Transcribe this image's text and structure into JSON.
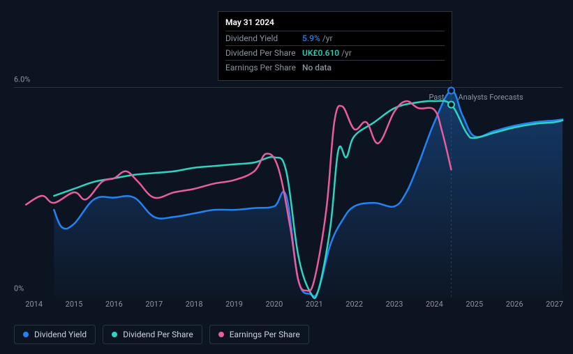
{
  "chart": {
    "type": "line",
    "background_color": "#0d1421",
    "grid_color": "#2a3340",
    "text_color": "#8b949e",
    "y_axis": {
      "min": 0,
      "max": 6.0,
      "labels": [
        {
          "value": "6.0%",
          "pos": 0
        },
        {
          "value": "0%",
          "pos": 1
        }
      ]
    },
    "x_axis": {
      "start": 2013.5,
      "end": 2027.2,
      "ticks": [
        2014,
        2015,
        2016,
        2017,
        2018,
        2019,
        2020,
        2021,
        2022,
        2023,
        2024,
        2025,
        2026,
        2027
      ]
    },
    "divider": {
      "x": 2024.42,
      "left_label": "Past",
      "right_label": "Analysts Forecasts"
    },
    "series": [
      {
        "name": "Dividend Yield",
        "color": "#2383f4",
        "fill": true,
        "fill_color": "rgba(35,131,244,0.15)",
        "stroke_width": 2.5,
        "points": [
          [
            2014.5,
            2.5
          ],
          [
            2014.7,
            2.0
          ],
          [
            2015,
            2.1
          ],
          [
            2015.5,
            2.8
          ],
          [
            2016,
            2.85
          ],
          [
            2016.5,
            2.85
          ],
          [
            2017,
            2.3
          ],
          [
            2017.5,
            2.3
          ],
          [
            2018,
            2.4
          ],
          [
            2018.5,
            2.5
          ],
          [
            2019,
            2.5
          ],
          [
            2019.5,
            2.55
          ],
          [
            2020,
            2.6
          ],
          [
            2020.3,
            2.9
          ],
          [
            2020.6,
            0.5
          ],
          [
            2020.9,
            0.1
          ],
          [
            2021.1,
            0.2
          ],
          [
            2021.4,
            1.5
          ],
          [
            2021.7,
            2.2
          ],
          [
            2022,
            2.6
          ],
          [
            2022.5,
            2.7
          ],
          [
            2023,
            2.6
          ],
          [
            2023.3,
            3.0
          ],
          [
            2023.6,
            3.8
          ],
          [
            2024,
            5.0
          ],
          [
            2024.42,
            5.9
          ],
          [
            2024.7,
            5.2
          ],
          [
            2025,
            4.6
          ],
          [
            2025.5,
            4.75
          ],
          [
            2026,
            4.9
          ],
          [
            2026.5,
            5.0
          ],
          [
            2027,
            5.05
          ],
          [
            2027.2,
            5.08
          ]
        ]
      },
      {
        "name": "Dividend Per Share",
        "color": "#2dd4bf",
        "fill": false,
        "stroke_width": 2.5,
        "points": [
          [
            2014.5,
            2.9
          ],
          [
            2015,
            3.1
          ],
          [
            2015.5,
            3.3
          ],
          [
            2016,
            3.4
          ],
          [
            2016.5,
            3.5
          ],
          [
            2017,
            3.55
          ],
          [
            2017.5,
            3.6
          ],
          [
            2018,
            3.7
          ],
          [
            2018.5,
            3.75
          ],
          [
            2019,
            3.8
          ],
          [
            2019.5,
            3.85
          ],
          [
            2020,
            4.0
          ],
          [
            2020.3,
            3.6
          ],
          [
            2020.6,
            1.2
          ],
          [
            2020.9,
            0.15
          ],
          [
            2021.1,
            0.2
          ],
          [
            2021.4,
            2.0
          ],
          [
            2021.6,
            4.2
          ],
          [
            2021.8,
            4.0
          ],
          [
            2022,
            4.6
          ],
          [
            2022.5,
            5.0
          ],
          [
            2023,
            5.4
          ],
          [
            2023.5,
            5.55
          ],
          [
            2024,
            5.6
          ],
          [
            2024.42,
            5.5
          ],
          [
            2024.8,
            4.7
          ],
          [
            2025,
            4.55
          ],
          [
            2025.5,
            4.7
          ],
          [
            2026,
            4.85
          ],
          [
            2026.5,
            4.95
          ],
          [
            2027,
            5.0
          ],
          [
            2027.2,
            5.05
          ]
        ]
      },
      {
        "name": "Earnings Per Share",
        "color": "#e85d9e",
        "fill": false,
        "stroke_width": 2.5,
        "points": [
          [
            2013.8,
            2.65
          ],
          [
            2014.2,
            2.9
          ],
          [
            2014.5,
            2.7
          ],
          [
            2015,
            3.0
          ],
          [
            2015.3,
            2.8
          ],
          [
            2015.7,
            3.3
          ],
          [
            2016,
            3.4
          ],
          [
            2016.3,
            3.6
          ],
          [
            2016.6,
            3.3
          ],
          [
            2017,
            2.85
          ],
          [
            2017.5,
            3.0
          ],
          [
            2018,
            3.1
          ],
          [
            2018.5,
            3.25
          ],
          [
            2019,
            3.35
          ],
          [
            2019.5,
            3.6
          ],
          [
            2019.8,
            4.1
          ],
          [
            2020.1,
            3.7
          ],
          [
            2020.4,
            2.0
          ],
          [
            2020.6,
            0.5
          ],
          [
            2020.8,
            0.2
          ],
          [
            2021,
            0.5
          ],
          [
            2021.3,
            2.5
          ],
          [
            2021.5,
            5.0
          ],
          [
            2021.7,
            5.45
          ],
          [
            2022,
            4.8
          ],
          [
            2022.3,
            5.0
          ],
          [
            2022.6,
            4.4
          ],
          [
            2023,
            5.3
          ],
          [
            2023.3,
            5.6
          ],
          [
            2023.6,
            5.4
          ],
          [
            2024,
            5.35
          ],
          [
            2024.2,
            4.7
          ],
          [
            2024.42,
            3.65
          ]
        ]
      }
    ],
    "markers": [
      {
        "x": 2024.42,
        "y": 5.9,
        "color": "#2383f4"
      },
      {
        "x": 2024.42,
        "y": 5.5,
        "color": "#2dd4bf"
      }
    ]
  },
  "tooltip": {
    "date": "May 31 2024",
    "rows": [
      {
        "label": "Dividend Yield",
        "value": "5.9%",
        "suffix": "/yr",
        "color": "#2383f4"
      },
      {
        "label": "Dividend Per Share",
        "value": "UK£0.610",
        "suffix": "/yr",
        "color": "#2dd4bf"
      },
      {
        "label": "Earnings Per Share",
        "value": "No data",
        "suffix": "",
        "color": "#8b949e"
      }
    ]
  },
  "legend": [
    {
      "label": "Dividend Yield",
      "color": "#2383f4"
    },
    {
      "label": "Dividend Per Share",
      "color": "#2dd4bf"
    },
    {
      "label": "Earnings Per Share",
      "color": "#e85d9e"
    }
  ]
}
